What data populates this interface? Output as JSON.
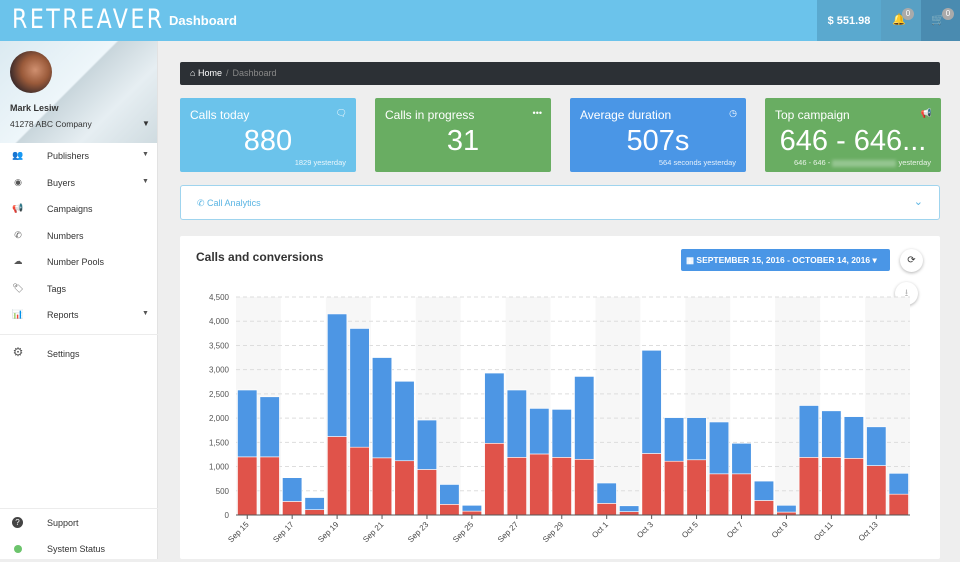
{
  "header": {
    "logo": "RETREAVER",
    "title": "Dashboard",
    "balance": "$ 551.98",
    "notifications_count": "0",
    "cart_count": "0",
    "icons": [
      "bell-icon",
      "cart-icon"
    ]
  },
  "profile": {
    "name": "Mark Lesiw",
    "company": "41278 ABC Company"
  },
  "sidebar": {
    "items": [
      {
        "label": "Publishers",
        "icon": "users-icon",
        "glyph": "👥",
        "caret": true
      },
      {
        "label": "Buyers",
        "icon": "target-icon",
        "glyph": "◉",
        "caret": true
      },
      {
        "label": "Campaigns",
        "icon": "bullhorn-icon",
        "glyph": "📢",
        "caret": false
      },
      {
        "label": "Numbers",
        "icon": "phone-icon",
        "glyph": "✆",
        "caret": false
      },
      {
        "label": "Number Pools",
        "icon": "cloud-icon",
        "glyph": "☁",
        "caret": false
      },
      {
        "label": "Tags",
        "icon": "tag-icon",
        "glyph": "🏷",
        "caret": false
      },
      {
        "label": "Reports",
        "icon": "bar-chart-icon",
        "glyph": "📊",
        "caret": true
      }
    ],
    "settings": {
      "label": "Settings",
      "glyph": "⚙"
    },
    "support": {
      "label": "Support",
      "glyph": "?"
    },
    "system_status": {
      "label": "System Status",
      "status_color": "#6cc46c"
    }
  },
  "breadcrumb": {
    "home": "Home",
    "current": "Dashboard"
  },
  "stats": [
    {
      "title": "Calls today",
      "value": "880",
      "sub": "1829 yesterday",
      "color": "#6bc3eb",
      "icon": "comments-icon",
      "glyph": "🗨"
    },
    {
      "title": "Calls in progress",
      "value": "31",
      "sub": "",
      "color": "#69ad62",
      "icon": "ellipsis-icon",
      "glyph": "•••"
    },
    {
      "title": "Average duration",
      "value": "507s",
      "sub": "564 seconds yesterday",
      "color": "#4a96e6",
      "icon": "clock-icon",
      "glyph": "◷"
    },
    {
      "title": "Top campaign",
      "value": "646 - 646...",
      "sub_prefix": "646 - 646 -",
      "sub_suffix": "yesterday",
      "color": "#69ad62",
      "icon": "bullhorn-icon",
      "glyph": "📢"
    }
  ],
  "analytics": {
    "label": "Call Analytics"
  },
  "chart_card": {
    "title": "Calls and conversions",
    "date_range": "SEPTEMBER 15, 2016 - OCTOBER 14, 2016"
  },
  "chart_data": {
    "type": "bar",
    "stacked": true,
    "title": "Calls and conversions",
    "categories": [
      "Sep 15",
      "Sep 16",
      "Sep 17",
      "Sep 18",
      "Sep 19",
      "Sep 20",
      "Sep 21",
      "Sep 22",
      "Sep 23",
      "Sep 24",
      "Sep 25",
      "Sep 26",
      "Sep 27",
      "Sep 28",
      "Sep 29",
      "Sep 30",
      "Oct 1",
      "Oct 2",
      "Oct 3",
      "Oct 4",
      "Oct 5",
      "Oct 6",
      "Oct 7",
      "Oct 8",
      "Oct 9",
      "Oct 10",
      "Oct 11",
      "Oct 12",
      "Oct 13",
      "Oct 14"
    ],
    "tick_labels": [
      "Sep 15",
      "Sep 17",
      "Sep 19",
      "Sep 21",
      "Sep 23",
      "Sep 25",
      "Sep 27",
      "Sep 29",
      "Oct 1",
      "Oct 3",
      "Oct 5",
      "Oct 7",
      "Oct 9",
      "Oct 11",
      "Oct 13"
    ],
    "series": [
      {
        "color": "#e0534a",
        "values": [
          1200,
          1200,
          280,
          110,
          1620,
          1400,
          1180,
          1120,
          940,
          220,
          80,
          1480,
          1190,
          1260,
          1190,
          1150,
          240,
          70,
          1270,
          1110,
          1140,
          850,
          850,
          300,
          60,
          1190,
          1190,
          1170,
          1020,
          430
        ]
      },
      {
        "color": "#4d96e4",
        "values": [
          1380,
          1240,
          490,
          250,
          2530,
          2450,
          2070,
          1640,
          1020,
          410,
          120,
          1450,
          1390,
          940,
          990,
          1710,
          420,
          120,
          2130,
          900,
          870,
          1070,
          630,
          400,
          140,
          1070,
          960,
          860,
          800,
          430
        ]
      }
    ],
    "ylim": [
      0,
      4500
    ],
    "yticks": [
      "0",
      "500",
      "1,000",
      "1,500",
      "2,000",
      "2,500",
      "3,000",
      "3,500",
      "4,000",
      "4,500"
    ],
    "grid": true
  }
}
